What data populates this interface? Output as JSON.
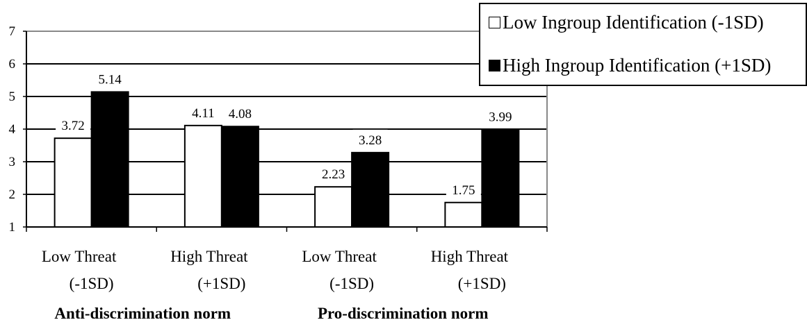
{
  "chart_data": {
    "type": "bar",
    "title": "",
    "xlabel": "",
    "ylabel": "",
    "ylim": [
      1,
      7
    ],
    "yticks": [
      "1",
      "2",
      "3",
      "4",
      "5",
      "6",
      "7"
    ],
    "grid": true,
    "legend_position": "top-right",
    "categories": [
      {
        "line1": "Low Threat",
        "line2": "(-1SD)"
      },
      {
        "line1": "High Threat",
        "line2": "(+1SD)"
      },
      {
        "line1": "Low Threat",
        "line2": "(-1SD)"
      },
      {
        "line1": "High Threat",
        "line2": "(+1SD)"
      }
    ],
    "groups": [
      "Anti-discrimination norm",
      "Pro-discrimination norm"
    ],
    "series": [
      {
        "name": "Low Ingroup Identification (-1SD)",
        "color": "#ffffff",
        "values": [
          3.72,
          4.11,
          2.23,
          1.75
        ],
        "labels": [
          "3.72",
          "4.11",
          "2.23",
          "1.75"
        ]
      },
      {
        "name": "High Ingroup Identification (+1SD)",
        "color": "#000000",
        "values": [
          5.14,
          4.08,
          3.28,
          3.99
        ],
        "labels": [
          "5.14",
          "4.08",
          "3.28",
          "3.99"
        ]
      }
    ]
  }
}
